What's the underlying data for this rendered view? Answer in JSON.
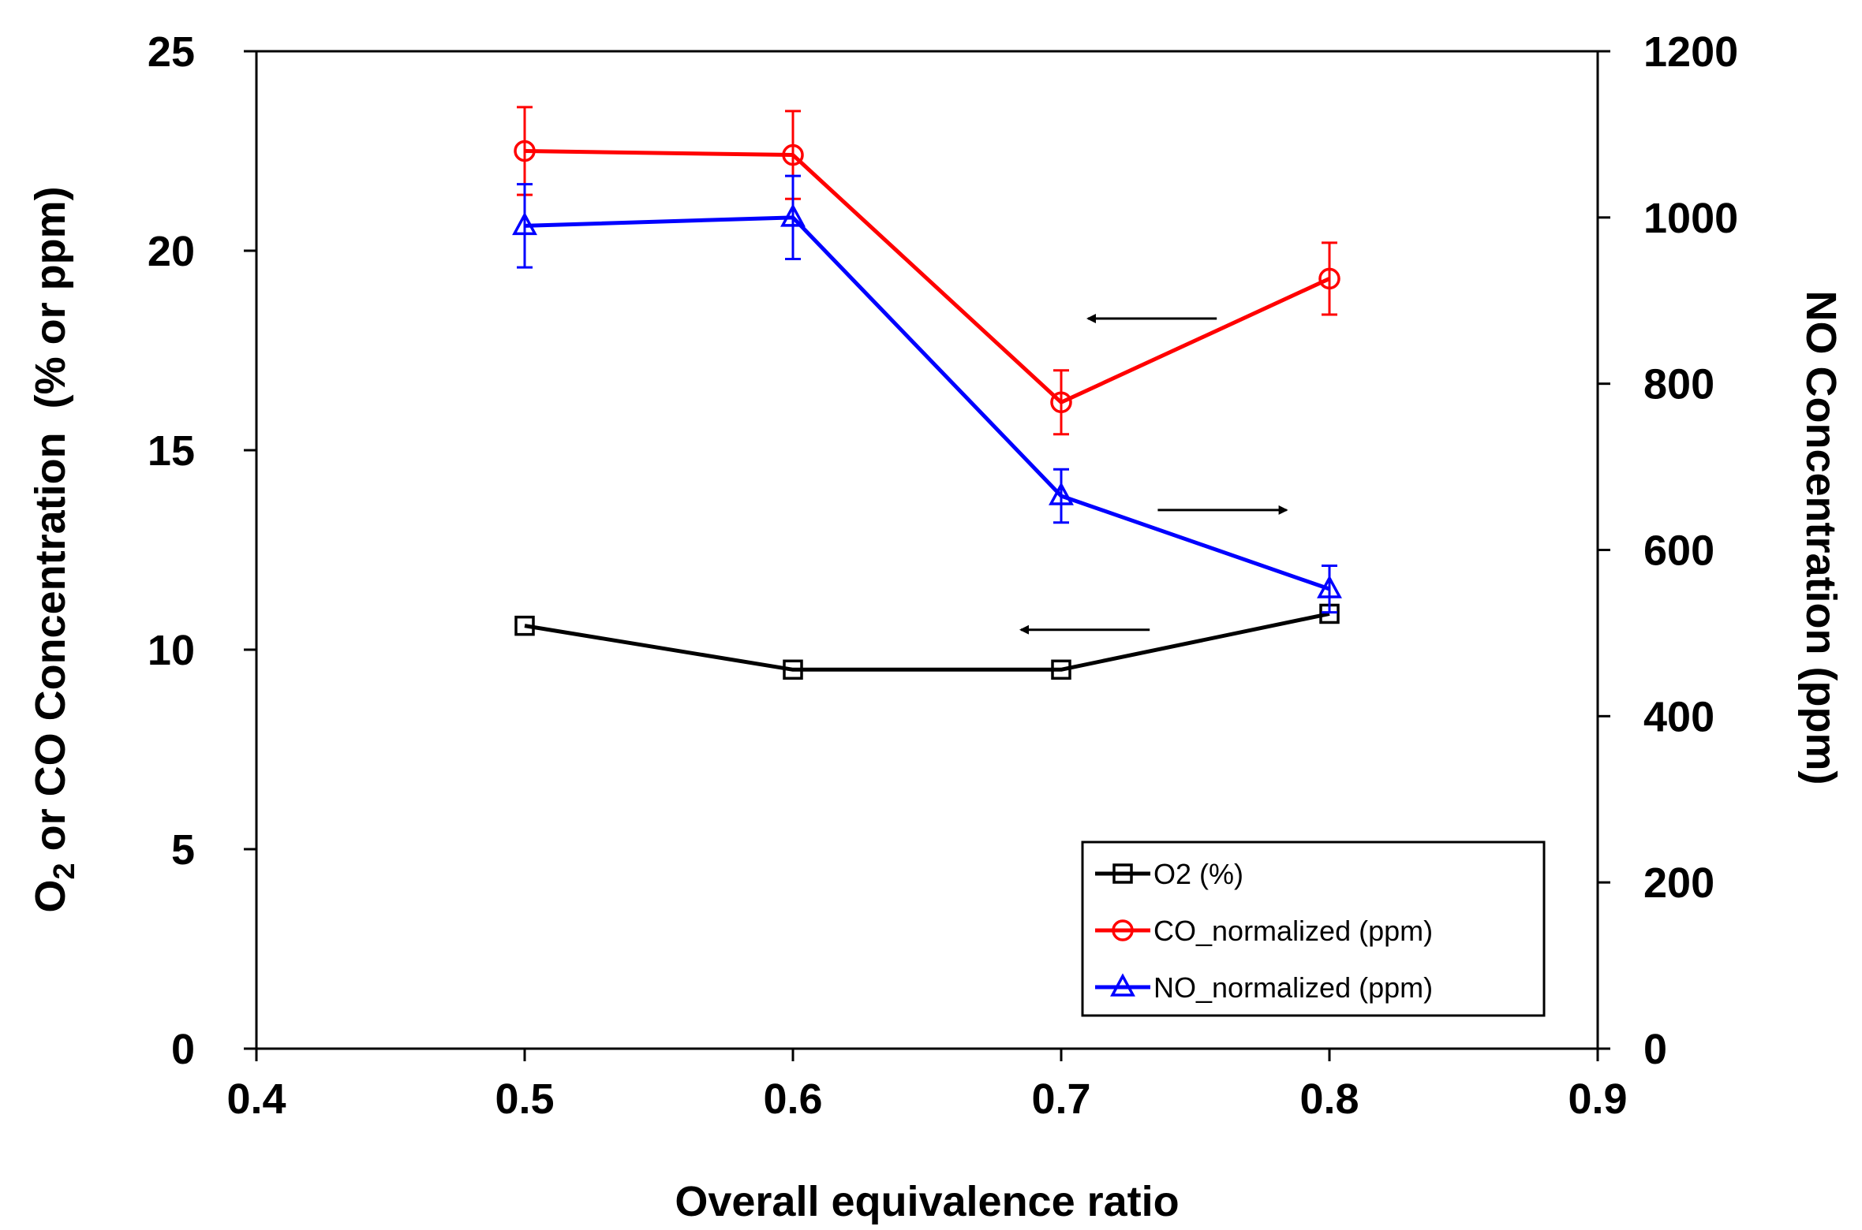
{
  "chart_data": {
    "type": "line",
    "title": "",
    "xlabel": "Overall equivalence ratio",
    "ylabel_left": {
      "prefix": "O",
      "subscript": "2",
      "rest": " or CO Concentration  (% or ppm)"
    },
    "ylabel_right": "NO Concentration (ppm)",
    "xlim": [
      0.4,
      0.9
    ],
    "x_ticks": [
      "0.4",
      "0.5",
      "0.6",
      "0.7",
      "0.8",
      "0.9"
    ],
    "ylim_left": [
      0,
      25
    ],
    "y_ticks_left": [
      "0",
      "5",
      "10",
      "15",
      "20",
      "25"
    ],
    "ylim_right": [
      0,
      1200
    ],
    "y_ticks_right": [
      "0",
      "200",
      "400",
      "600",
      "800",
      "1000",
      "1200"
    ],
    "grid": false,
    "legend_position": "bottom-right",
    "series": [
      {
        "name": "O2 (%)",
        "axis": "left",
        "color": "#000000",
        "marker": "square",
        "x": [
          0.5,
          0.6,
          0.7,
          0.8
        ],
        "y": [
          10.6,
          9.5,
          9.5,
          10.9
        ],
        "err": [
          0,
          0,
          0,
          0
        ]
      },
      {
        "name": "CO_normalized (ppm)",
        "axis": "left",
        "color": "#ff0000",
        "marker": "circle",
        "x": [
          0.5,
          0.6,
          0.7,
          0.8
        ],
        "y": [
          22.5,
          22.4,
          16.2,
          19.3
        ],
        "err": [
          1.1,
          1.1,
          0.8,
          0.9
        ]
      },
      {
        "name": "NO_normalized (ppm)",
        "axis": "right",
        "color": "#0000ff",
        "marker": "triangle",
        "x": [
          0.5,
          0.6,
          0.7,
          0.8
        ],
        "y": [
          990,
          1000,
          665,
          553
        ],
        "err": [
          50,
          50,
          32,
          28
        ]
      }
    ],
    "annotations": [
      {
        "type": "arrow",
        "direction": "left",
        "refers_to": "CO_normalized (ppm)"
      },
      {
        "type": "arrow",
        "direction": "right",
        "refers_to": "NO_normalized (ppm)"
      },
      {
        "type": "arrow",
        "direction": "left",
        "refers_to": "O2 (%)"
      }
    ]
  }
}
